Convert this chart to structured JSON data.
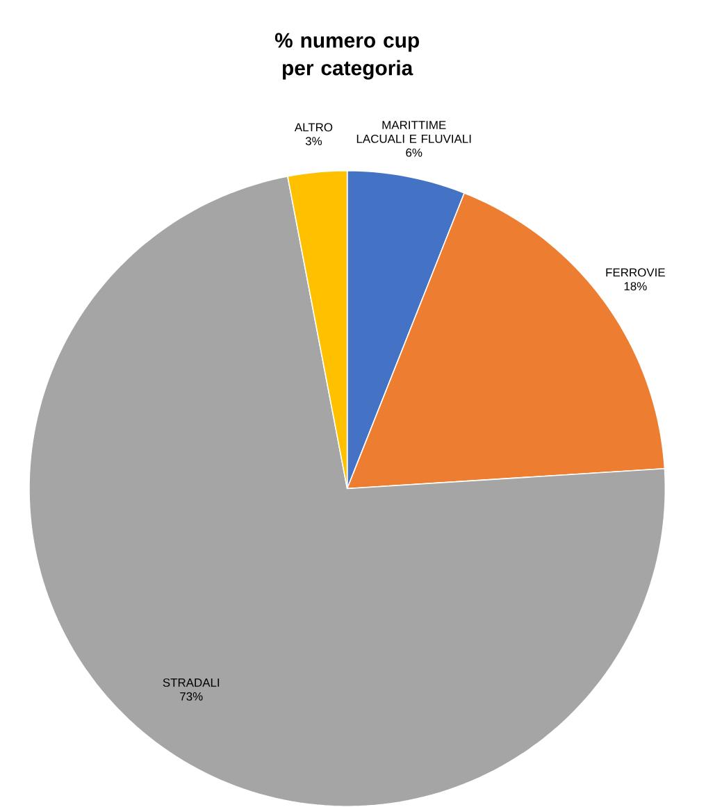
{
  "chart_data": {
    "type": "pie",
    "title": "% numero cup per categoria",
    "categories": [
      "MARITTIME LACUALI E FLUVIALI",
      "FERROVIE",
      "STRADALI",
      "ALTRO"
    ],
    "values": [
      6,
      18,
      73,
      3
    ],
    "colors": [
      "#4472c4",
      "#ed7d31",
      "#a5a5a5",
      "#ffc000"
    ],
    "value_labels": [
      "6%",
      "18%",
      "73%",
      "3%"
    ]
  }
}
